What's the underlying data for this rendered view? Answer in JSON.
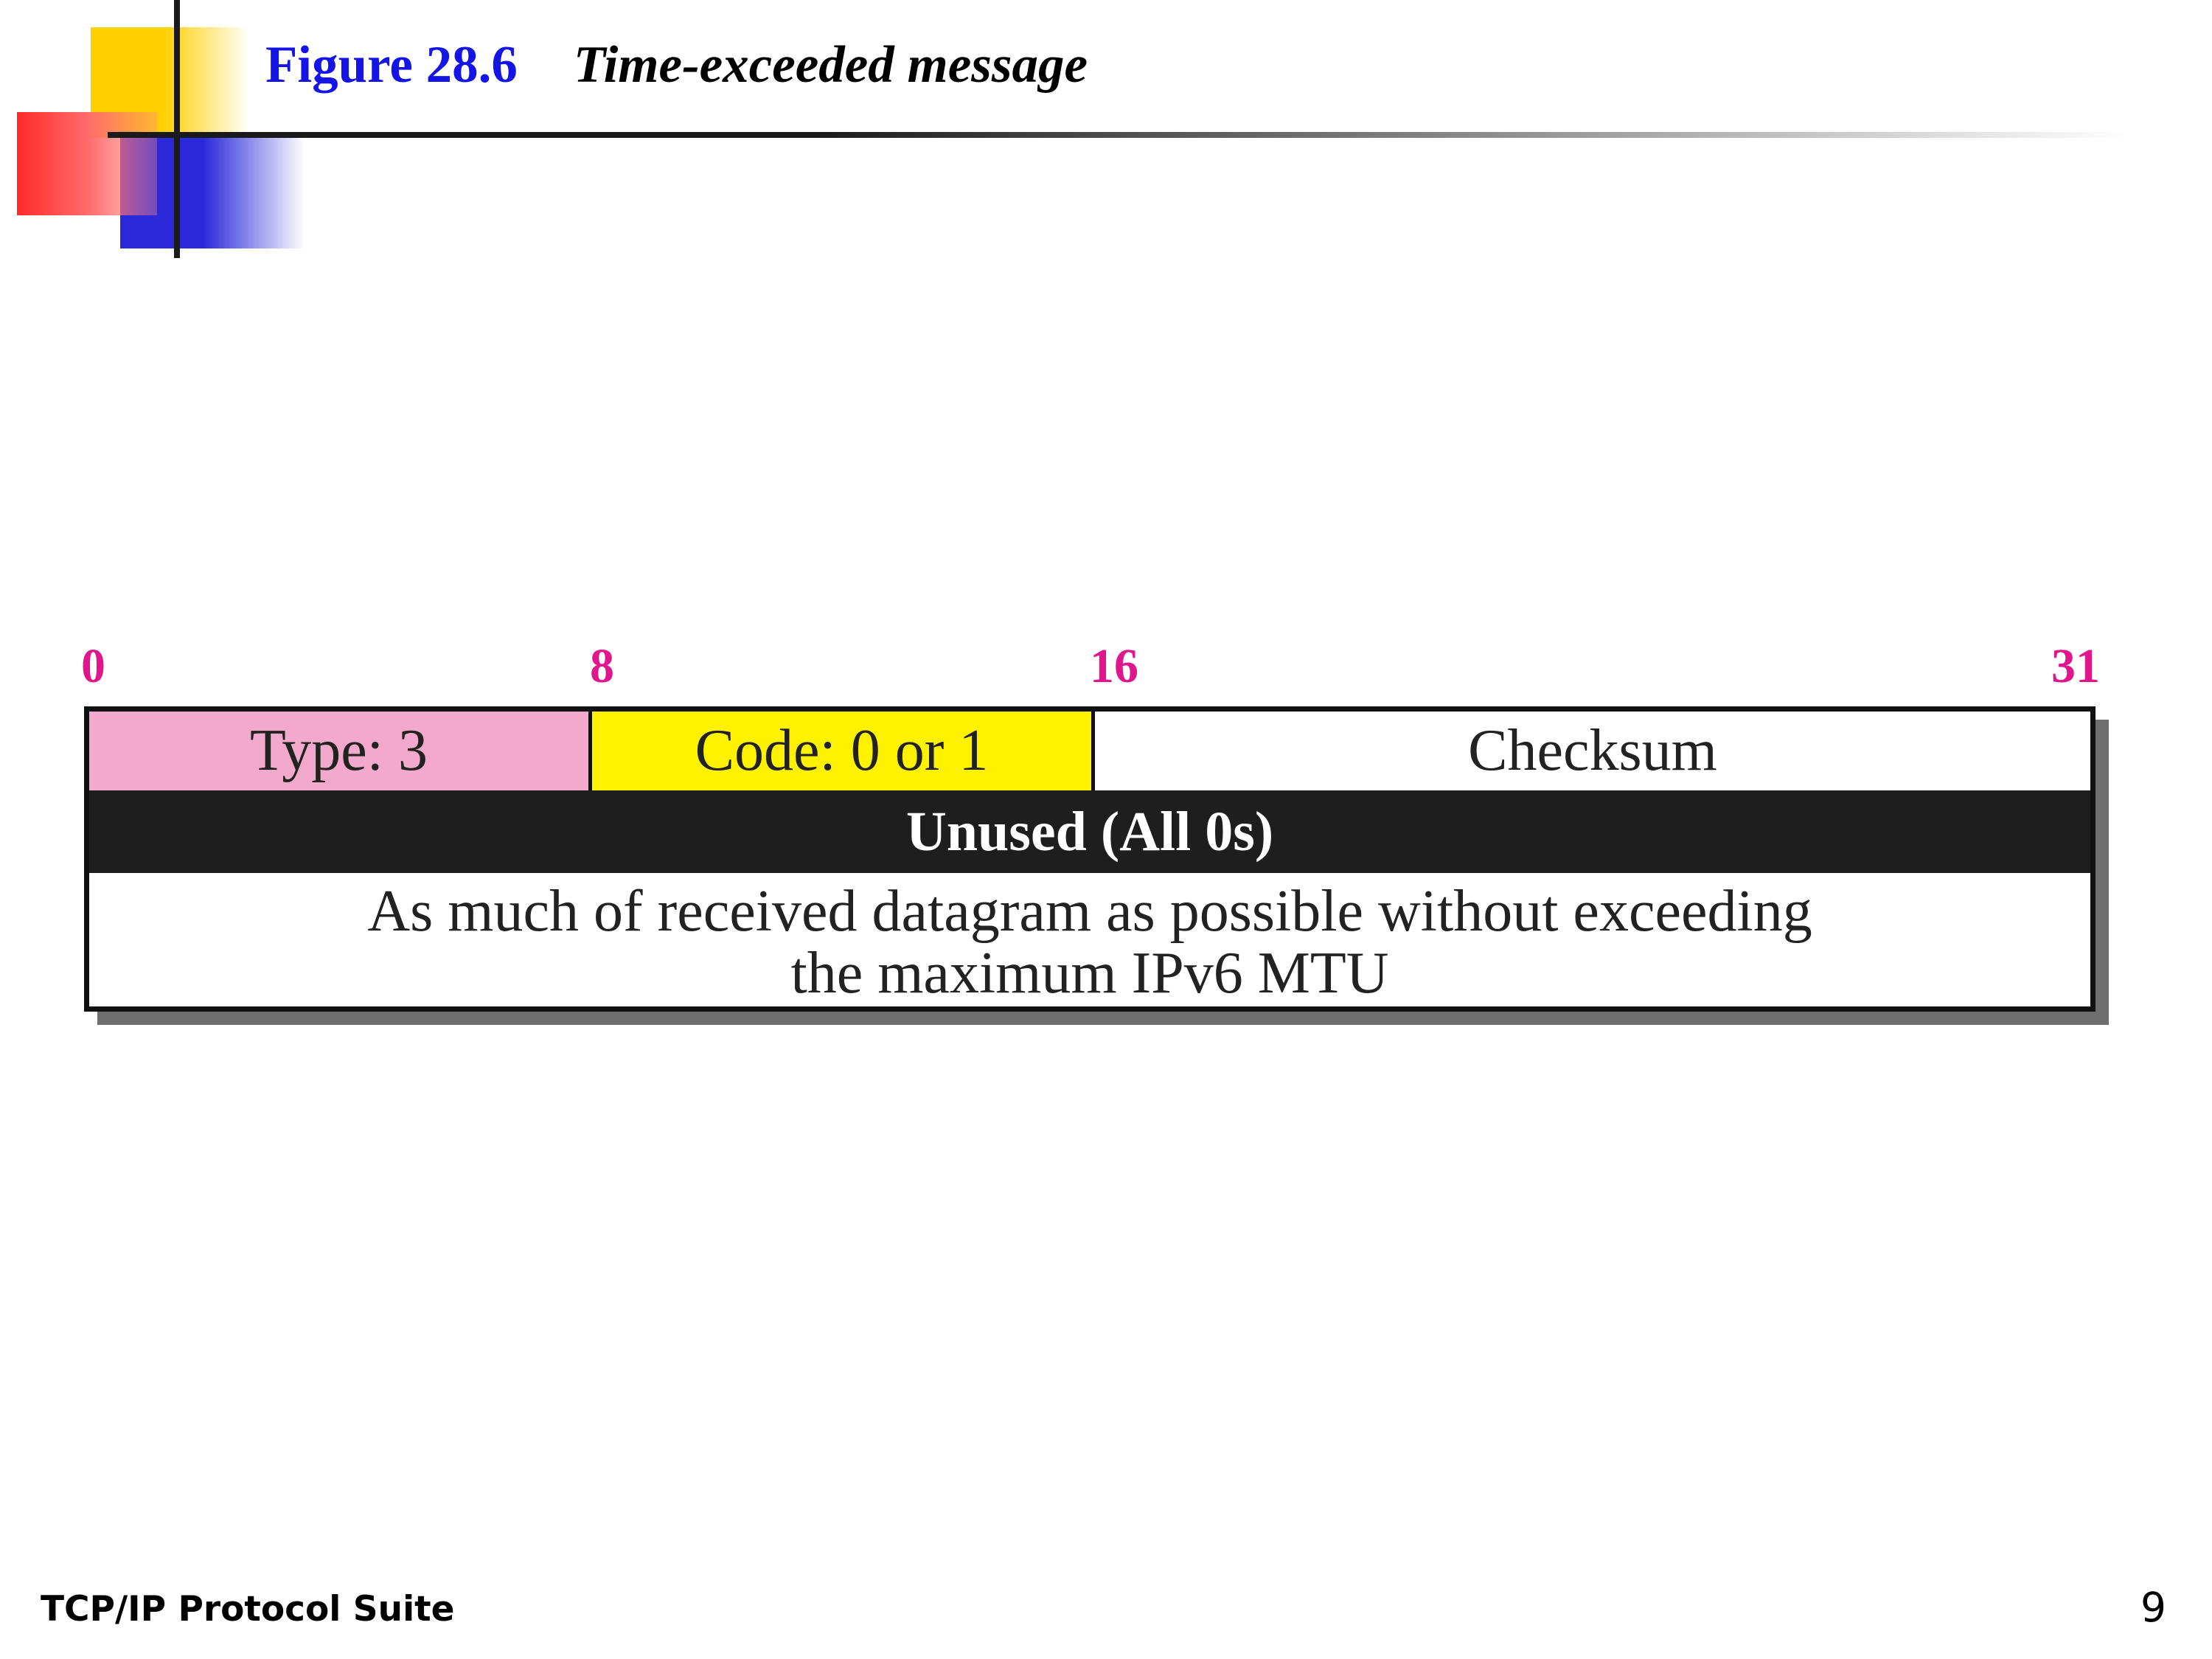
{
  "header": {
    "figure_number": "Figure 28.6",
    "caption": "Time-exceeded message"
  },
  "diagram": {
    "bit_labels": [
      "0",
      "8",
      "16",
      "31"
    ],
    "fields": {
      "type": "Type: 3",
      "code": "Code: 0 or 1",
      "checksum": "Checksum",
      "unused": "Unused (All 0s)",
      "payload_line1": "As much of received datagram as possible without exceeding",
      "payload_line2": "the maximum IPv6 MTU"
    },
    "colors": {
      "type_field": "#f2a9cb",
      "code_field": "#fff200",
      "unused_field": "#1e1e1e",
      "bit_labels": "#e0168c"
    }
  },
  "footer": {
    "source": "TCP/IP Protocol Suite",
    "page": "9"
  }
}
